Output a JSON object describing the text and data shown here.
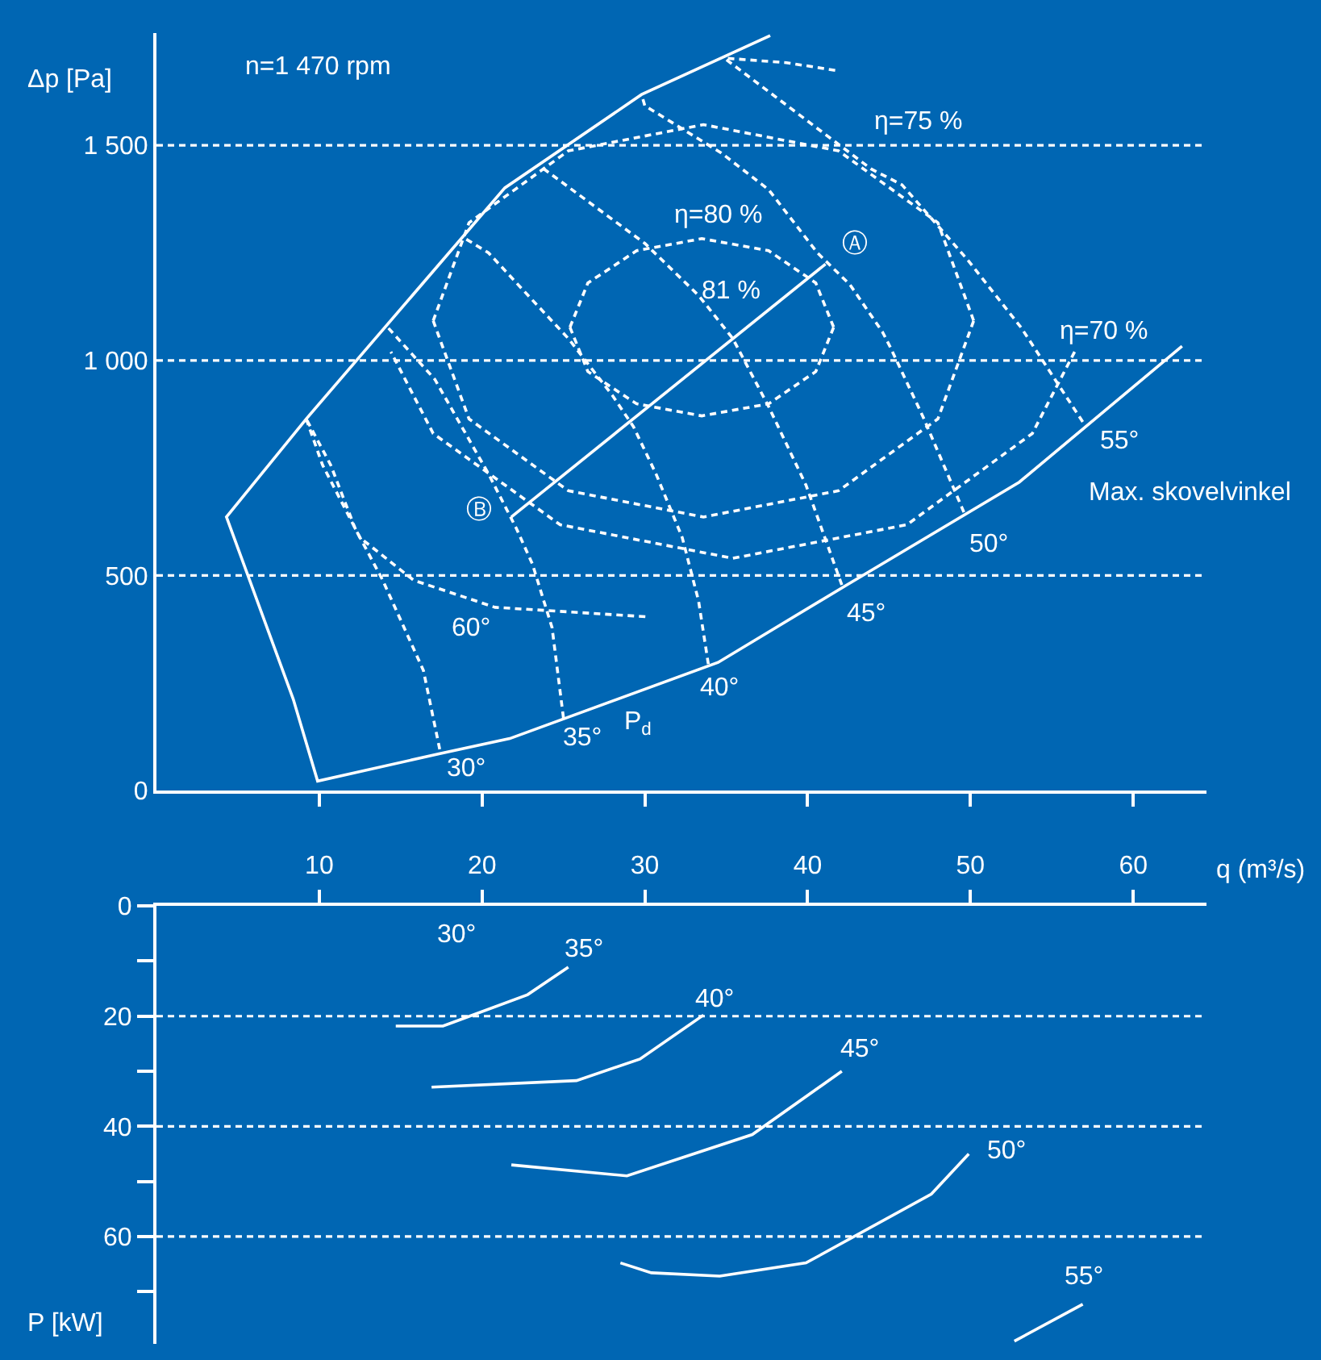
{
  "chart_data": [
    {
      "type": "line",
      "ylabel": "Δp [Pa]",
      "xlabel": "q (m³/s)",
      "xlim": [
        0,
        64.5
      ],
      "xticks": [
        10,
        20,
        30,
        40,
        50,
        60
      ],
      "ylim": [
        0,
        1760
      ],
      "yticks": [
        0,
        500,
        {
          "value": 1000,
          "label": "1 000"
        },
        {
          "value": 1500,
          "label": "1 500"
        }
      ],
      "legend": false,
      "marker": "none",
      "grid": false,
      "ref_lines": [
        {
          "axis": "y",
          "value": 500,
          "line_style": "dashed",
          "color": "#ffffff"
        },
        {
          "axis": "y",
          "value": 1000,
          "line_style": "dashed",
          "color": "#ffffff"
        },
        {
          "axis": "y",
          "value": 1500,
          "line_style": "dashed",
          "color": "#ffffff"
        }
      ],
      "series": [
        {
          "name": "P$_{d}$",
          "color": "#ffffff",
          "line_style": "solid",
          "x": [
            63.0,
            53.0,
            42.4,
            34.5,
            21.7,
            17.3,
            9.9,
            8.4,
            4.3,
            9.2,
            21.4,
            29.8,
            37.7
          ],
          "values": [
            1033,
            717,
            478,
            298,
            121,
            85,
            22,
            213,
            636,
            864,
            1401,
            1618,
            1755
          ]
        },
        {
          "color": "#ffffff",
          "line_style": "solid",
          "x": [
            21.8,
            41.1
          ],
          "values": [
            636,
            1224
          ]
        },
        {
          "name": "30°",
          "color": "#ffffff",
          "line_style": "dashed",
          "x": [
            17.4,
            16.4,
            13.9,
            12.2,
            10.7,
            9.2
          ],
          "values": [
            96,
            279,
            489,
            610,
            757,
            864
          ]
        },
        {
          "name": "35°",
          "color": "#ffffff",
          "line_style": "dashed",
          "x": [
            25.0,
            24.3,
            23.1,
            22.1,
            20.4,
            17.1,
            14.2
          ],
          "values": [
            169,
            379,
            526,
            610,
            736,
            956,
            1077
          ]
        },
        {
          "name": "40°",
          "color": "#ffffff",
          "line_style": "dashed",
          "x": [
            33.9,
            33.3,
            32.3,
            30.7,
            29.3,
            28.0,
            25.3,
            23.1,
            20.4,
            18.8
          ],
          "values": [
            294,
            441,
            588,
            735,
            846,
            919,
            1051,
            1140,
            1250,
            1287
          ]
        },
        {
          "name": "45°",
          "color": "#ffffff",
          "line_style": "dashed",
          "x": [
            42.1,
            39.9,
            37.6,
            35.4,
            33.3,
            30.0,
            23.8
          ],
          "values": [
            478,
            710,
            893,
            1051,
            1151,
            1272,
            1445
          ]
        },
        {
          "name": "50°",
          "color": "#ffffff",
          "line_style": "dashed",
          "x": [
            49.6,
            47.1,
            45.1,
            44.6,
            42.6,
            40.6,
            37.6,
            34.7,
            30.0,
            29.8
          ],
          "values": [
            647,
            868,
            1029,
            1066,
            1176,
            1250,
            1397,
            1482,
            1592,
            1618
          ]
        },
        {
          "name": "55°",
          "color": "#ffffff",
          "line_style": "dashed",
          "x": [
            56.9,
            55.0,
            53.1,
            49.8,
            45.8,
            43.9,
            34.9
          ],
          "values": [
            857,
            967,
            1077,
            1235,
            1408,
            1445,
            1702
          ]
        },
        {
          "name": "60°",
          "color": "#ffffff",
          "line_style": "dashed",
          "x": [
            9.2,
            10.2,
            12.5,
            15.8,
            20.8,
            30.2
          ],
          "values": [
            864,
            757,
            588,
            489,
            426,
            404
          ]
        },
        {
          "name": "η=80 %",
          "color": "#ffffff",
          "line_style": "dashed",
          "x": [
            25.4,
            26.5,
            29.5,
            33.5,
            37.6,
            40.5,
            41.6
          ],
          "values": [
            1077,
            1180,
            1255,
            1283,
            1255,
            1180,
            1077
          ]
        },
        {
          "color": "#ffffff",
          "line_style": "dashed",
          "x": [
            25.4,
            26.5,
            29.5,
            33.5,
            37.6,
            40.5,
            41.6
          ],
          "values": [
            1077,
            974,
            899,
            871,
            899,
            974,
            1077
          ]
        },
        {
          "name": "η=75 %",
          "color": "#ffffff",
          "line_style": "dashed",
          "x": [
            17.0,
            19.2,
            25.3,
            33.6,
            41.9,
            48.0,
            50.2
          ],
          "values": [
            1092,
            1320,
            1487,
            1548,
            1487,
            1320,
            1092
          ]
        },
        {
          "color": "#ffffff",
          "line_style": "dashed",
          "x": [
            17.0,
            19.2,
            25.3,
            33.6,
            41.9,
            48.0,
            50.2
          ],
          "values": [
            1092,
            864,
            697,
            636,
            697,
            864,
            1092
          ]
        },
        {
          "name": "η=70 %",
          "color": "#ffffff",
          "line_style": "dashed",
          "x": [
            56.4,
            53.8,
            46.1,
            35.4,
            24.8,
            17.0,
            14.4
          ],
          "values": [
            1020,
            830,
            618,
            540,
            618,
            830,
            1020
          ]
        },
        {
          "color": "#ffffff",
          "line_style": "dashed",
          "x": [
            35.1,
            38.7,
            41.9
          ],
          "values": [
            1702,
            1692,
            1673
          ]
        }
      ],
      "annotations": [
        "n=1 470 rpm",
        "81 %",
        "Max. skovelvinkel",
        "Ⓐ",
        "Ⓑ"
      ]
    },
    {
      "type": "line",
      "ylabel": "P [kW]",
      "xlim": [
        0,
        64.5
      ],
      "xticks": [
        10,
        20,
        30,
        40,
        50,
        60
      ],
      "tick_labels": "y",
      "ylim": [
        79.5,
        0
      ],
      "yticks": [
        0,
        {
          "value": 10,
          "label": null
        },
        20,
        {
          "value": 30,
          "label": null
        },
        40,
        {
          "value": 50,
          "label": null
        },
        60,
        {
          "value": 70,
          "label": null
        }
      ],
      "legend": false,
      "marker": "none",
      "grid": false,
      "ref_lines": [
        {
          "axis": "y",
          "value": 20,
          "line_style": "dashed",
          "color": "#ffffff"
        },
        {
          "axis": "y",
          "value": 40,
          "line_style": "dashed",
          "color": "#ffffff"
        },
        {
          "axis": "y",
          "value": 60,
          "line_style": "dashed",
          "color": "#ffffff"
        }
      ],
      "series": [
        {
          "name": "35°",
          "color": "#ffffff",
          "line_style": "solid",
          "x": [
            14.7,
            17.6,
            22.8,
            25.3
          ],
          "values": [
            21.8,
            21.8,
            16.1,
            11.1
          ]
        },
        {
          "name": "40°",
          "color": "#ffffff",
          "line_style": "solid",
          "x": [
            16.9,
            25.8,
            29.7,
            33.6
          ],
          "values": [
            32.9,
            31.7,
            27.8,
            19.8
          ]
        },
        {
          "name": "45°",
          "color": "#ffffff",
          "line_style": "solid",
          "x": [
            21.8,
            28.9,
            36.6,
            42.1
          ],
          "values": [
            47.0,
            49.0,
            41.5,
            30.0
          ]
        },
        {
          "name": "50°",
          "color": "#ffffff",
          "line_style": "solid",
          "x": [
            28.5,
            30.4,
            34.6,
            39.9,
            47.6,
            49.9
          ],
          "values": [
            64.8,
            66.6,
            67.2,
            64.8,
            52.3,
            45.0
          ]
        },
        {
          "name": "55°",
          "color": "#ffffff",
          "line_style": "solid",
          "x": [
            52.7,
            56.9
          ],
          "values": [
            79.0,
            72.3
          ]
        }
      ],
      "annotations": [
        "30°"
      ]
    }
  ]
}
